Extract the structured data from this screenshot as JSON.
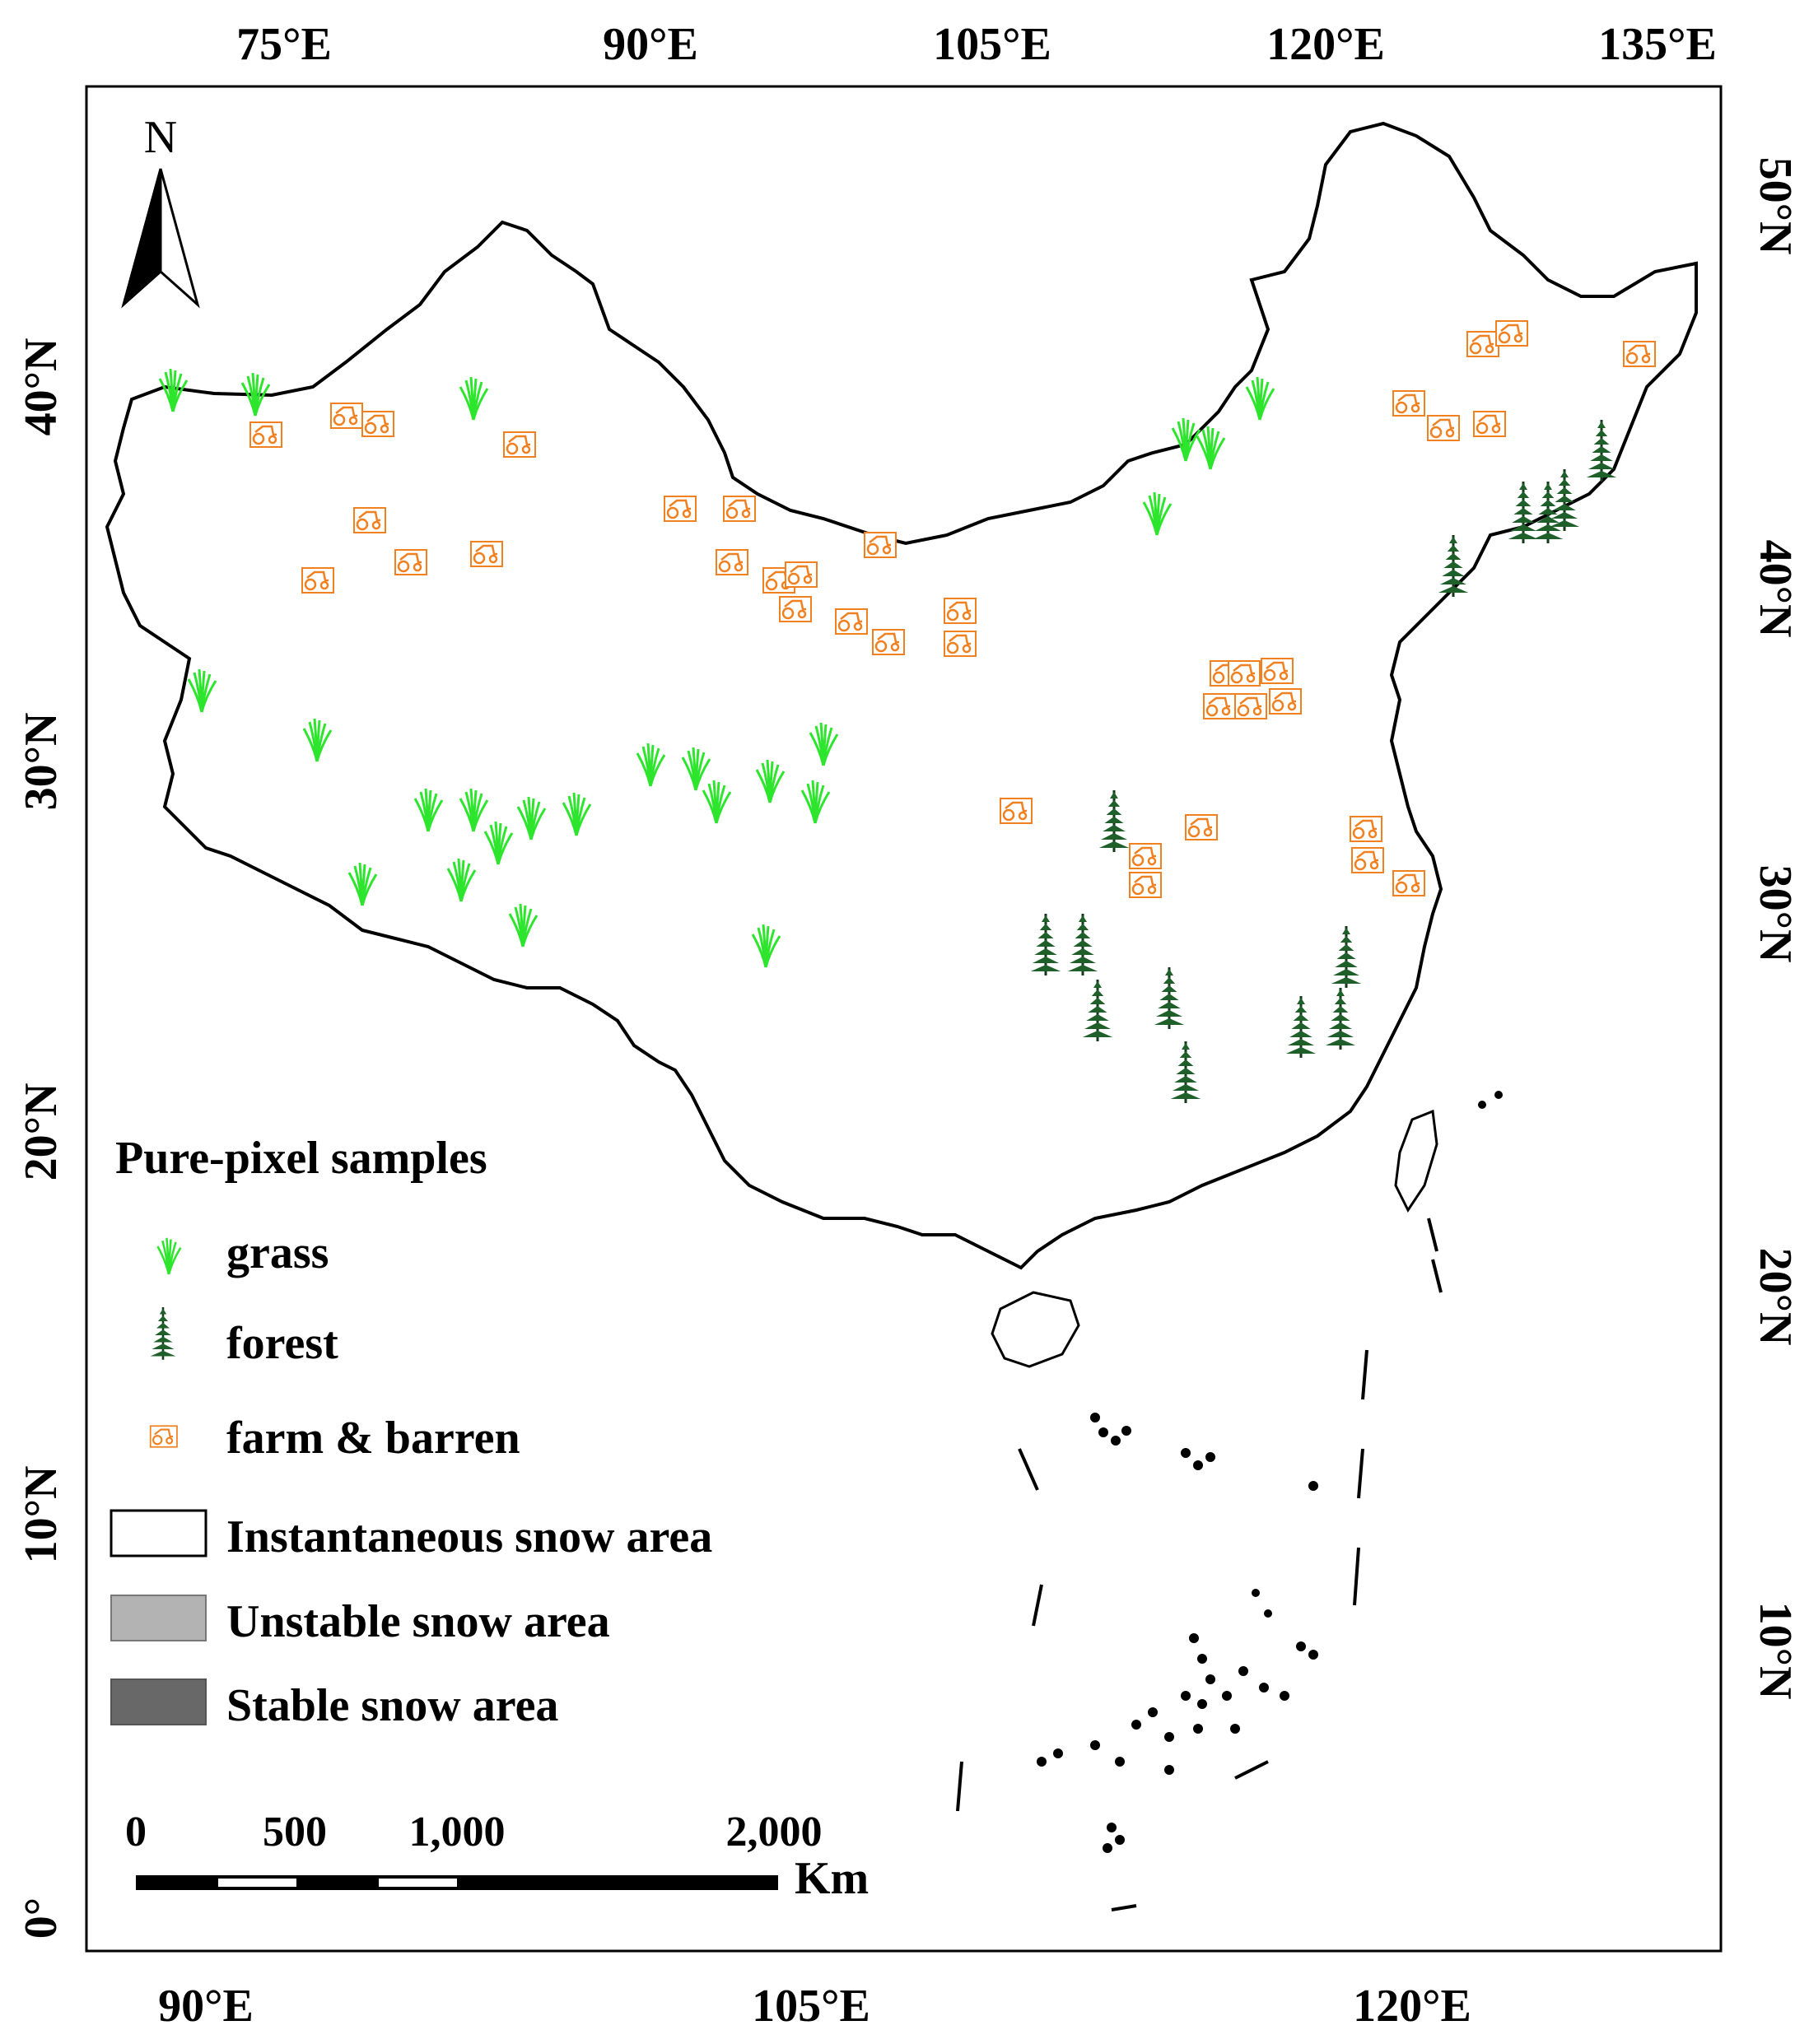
{
  "figure": {
    "top_lon_labels": [
      "75°E",
      "90°E",
      "105°E",
      "120°E",
      "135°E"
    ],
    "bottom_lon_labels": [
      "90°E",
      "105°E",
      "120°E"
    ],
    "left_lat_labels": [
      "40°N",
      "30°N",
      "20°N",
      "10°N",
      "0°"
    ],
    "right_lat_labels": [
      "50°N",
      "40°N",
      "30°N",
      "20°N",
      "10°N"
    ],
    "north_arrow_label": "N"
  },
  "legend": {
    "title": "Pure-pixel samples",
    "samples": [
      {
        "label": "grass",
        "icon": "grass-icon",
        "color": "#2ee52e"
      },
      {
        "label": "forest",
        "icon": "forest-icon",
        "color": "#1f5f2a"
      },
      {
        "label": "farm & barren",
        "icon": "tractor-icon",
        "color": "#f08020"
      }
    ],
    "snow_classes": [
      {
        "label": "Instantaneous snow area",
        "color": "#ffffff"
      },
      {
        "label": "Unstable snow area",
        "color": "#b3b3b3"
      },
      {
        "label": "Stable snow area",
        "color": "#686868"
      }
    ]
  },
  "scale_bar": {
    "ticks": [
      "0",
      "500",
      "1,000",
      "2,000"
    ],
    "unit": "Km"
  },
  "colors": {
    "stable": "#686868",
    "unstable": "#b3b3b3",
    "instant": "#ffffff",
    "grass": "#2ee52e",
    "forest": "#1f5f2a",
    "farm": "#f08020"
  }
}
